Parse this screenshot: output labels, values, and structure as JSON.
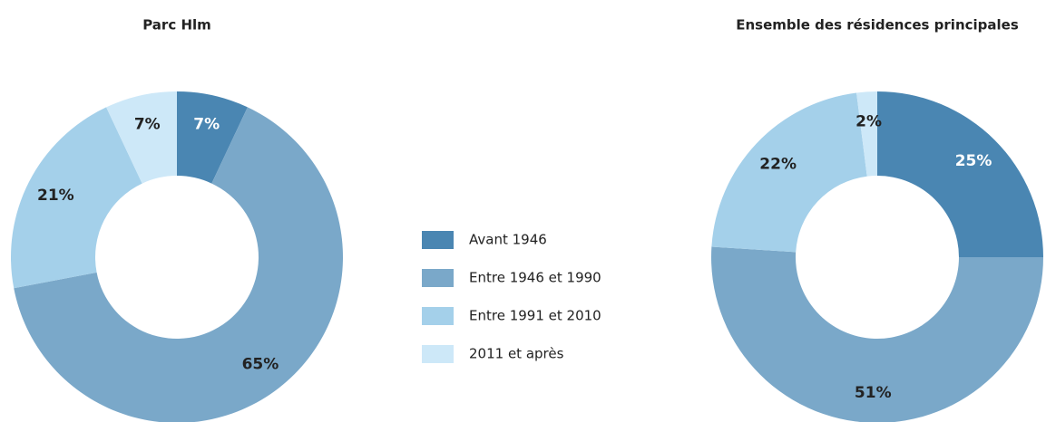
{
  "legend": {
    "labels": [
      "Avant 1946",
      "Entre 1946 et 1990",
      "Entre 1991 et 2010",
      "2011 et après"
    ],
    "colors": [
      "#4a86b2",
      "#7aa8c9",
      "#a4d0ea",
      "#cde8f8"
    ]
  },
  "chart_data": [
    {
      "type": "donut",
      "title": "Parc Hlm",
      "values": [
        7,
        65,
        21,
        7
      ],
      "value_labels": [
        "7%",
        "65%",
        "21%",
        "7%"
      ]
    },
    {
      "type": "donut",
      "title": "Ensemble des résidences principales",
      "values": [
        25,
        51,
        22,
        2
      ],
      "value_labels": [
        "25%",
        "51%",
        "22%",
        "2%"
      ]
    }
  ]
}
